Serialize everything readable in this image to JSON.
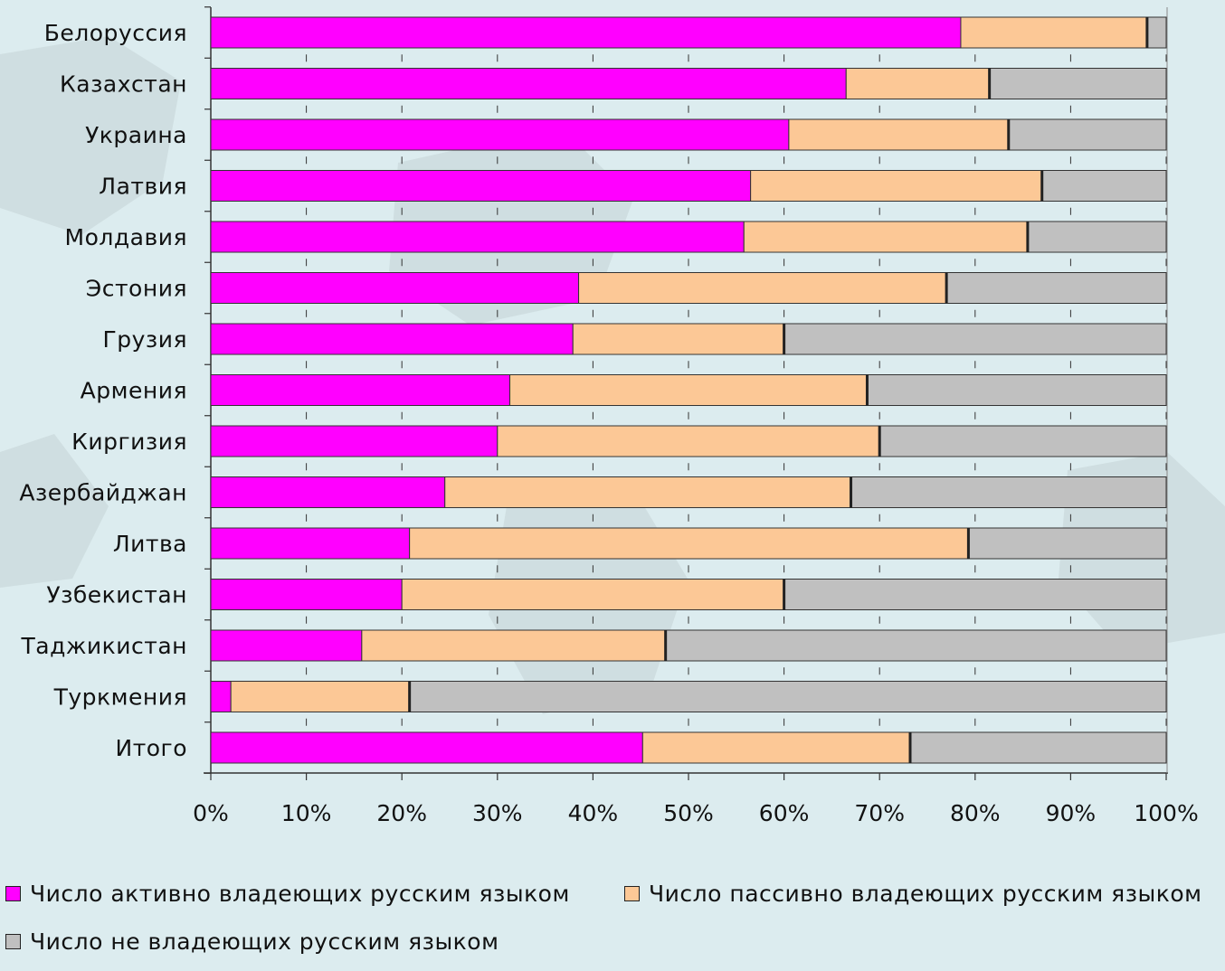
{
  "chart_data": {
    "type": "bar",
    "orientation": "horizontal",
    "stacked": "percent",
    "categories": [
      "Белоруссия",
      "Казахстан",
      "Украина",
      "Латвия",
      "Молдавия",
      "Эстония",
      "Грузия",
      "Армения",
      "Киргизия",
      "Азербайджан",
      "Литва",
      "Узбекистан",
      "Таджикистан",
      "Туркмения",
      "Итого"
    ],
    "series": [
      {
        "name": "Число активно владеющих русским языком",
        "color": "#ff00ff",
        "values": [
          78.5,
          66.5,
          60.5,
          56.5,
          55.8,
          38.5,
          37.9,
          31.3,
          30.0,
          24.5,
          20.8,
          20.0,
          15.8,
          2.1,
          45.2
        ]
      },
      {
        "name": "Число пассивно владеющих русским языком",
        "color": "#fcc896",
        "values": [
          19.5,
          15.0,
          23.0,
          30.5,
          29.7,
          38.5,
          22.1,
          37.4,
          40.0,
          42.5,
          58.5,
          40.0,
          31.8,
          18.7,
          28.0
        ]
      },
      {
        "name": "Число не владеющих русским языком",
        "color": "#c0c0c0",
        "values": [
          2.0,
          18.5,
          16.5,
          13.0,
          14.5,
          23.0,
          40.0,
          31.3,
          30.0,
          33.0,
          20.7,
          40.0,
          52.4,
          79.2,
          26.8
        ]
      }
    ],
    "x_ticks": [
      "0%",
      "10%",
      "20%",
      "30%",
      "40%",
      "50%",
      "60%",
      "70%",
      "80%",
      "90%",
      "100%"
    ],
    "xlim": [
      0,
      100
    ],
    "grid": false,
    "legend_position": "bottom"
  },
  "legend": {
    "active": "Число активно владеющих русским языком",
    "passive": "Число пассивно владеющих русским языком",
    "none": "Число не владеющих русским языком"
  },
  "colors": {
    "background": "#dcecef",
    "active": "#ff00ff",
    "passive": "#fcc896",
    "none": "#c0c0c0"
  }
}
